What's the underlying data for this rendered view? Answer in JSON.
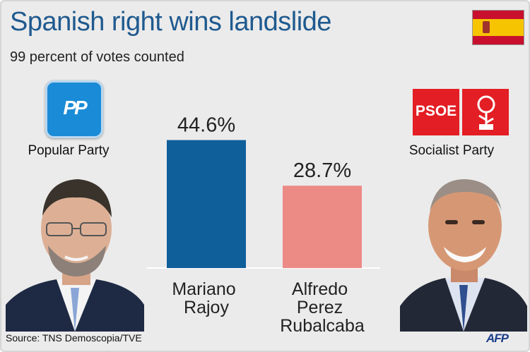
{
  "header": {
    "title": "Spanish right wins landslide",
    "subtitle": "99 percent of votes counted"
  },
  "parties": {
    "left": {
      "logo_text": "PP",
      "name": "Popular Party"
    },
    "right": {
      "logo_text": "PSOE",
      "name": "Socialist Party"
    }
  },
  "footer": {
    "source": "Source: TNS Demoscopia/TVE",
    "agency": "AFP"
  },
  "colors": {
    "title": "#1f5a8f",
    "pp_blue": "#1a8bd6",
    "psoe_red": "#e31e24",
    "bar_rajoy": "#0f5f9a",
    "bar_rubalcaba": "#ec8a86"
  },
  "icons": [
    "spain-flag-icon",
    "pp-logo-icon",
    "psoe-logo-icon",
    "rajoy-photo",
    "rubalcaba-photo"
  ],
  "chart_data": {
    "type": "bar",
    "categories": [
      "Mariano Rajoy",
      "Alfredo Perez Rubalcaba"
    ],
    "category_lines": [
      [
        "Mariano",
        "Rajoy"
      ],
      [
        "Alfredo",
        "Perez",
        "Rubalcaba"
      ]
    ],
    "values": [
      44.6,
      28.7
    ],
    "value_labels": [
      "44.6%",
      "28.7%"
    ],
    "bar_colors": [
      "#0f5f9a",
      "#ec8a86"
    ],
    "title": "",
    "xlabel": "",
    "ylabel": "",
    "ylim": [
      0,
      50
    ],
    "grid": false
  }
}
